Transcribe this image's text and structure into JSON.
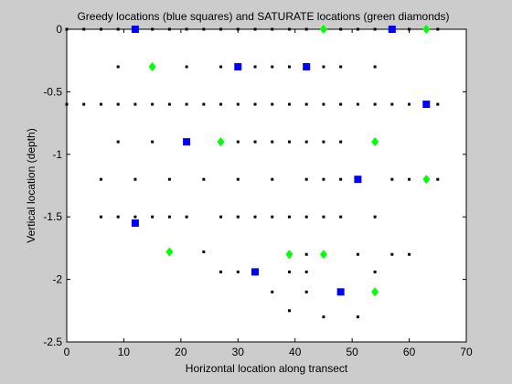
{
  "chart_data": {
    "type": "scatter",
    "title": "Greedy locations (blue squares) and SATURATE locations (green diamonds)",
    "xlabel": "Horizontal location along transect",
    "ylabel": "Vertical location (depth)",
    "xlim": [
      0,
      70
    ],
    "ylim": [
      -2.5,
      0
    ],
    "xticks": [
      0,
      10,
      20,
      30,
      40,
      50,
      60,
      70
    ],
    "yticks": [
      0,
      -0.5,
      -1,
      -1.5,
      -2,
      -2.5
    ],
    "xtick_labels": [
      "0",
      "10",
      "20",
      "30",
      "40",
      "50",
      "60",
      "70"
    ],
    "ytick_labels": [
      "0",
      "-0.5",
      "-1",
      "-1.5",
      "-2",
      "-2.5"
    ],
    "grid": false,
    "series": [
      {
        "marker": "dot",
        "color": "#000000",
        "x": [
          0,
          3,
          6,
          9,
          12,
          15,
          18,
          21,
          24,
          27,
          30,
          33,
          36,
          39,
          42,
          45,
          48,
          51,
          54,
          57,
          60,
          63,
          65,
          9,
          15,
          21,
          27,
          30,
          33,
          36,
          39,
          42,
          45,
          48,
          54,
          0,
          3,
          6,
          9,
          12,
          15,
          18,
          21,
          24,
          27,
          30,
          33,
          36,
          39,
          42,
          45,
          48,
          51,
          54,
          57,
          60,
          63,
          65,
          9,
          15,
          21,
          27,
          30,
          33,
          36,
          39,
          42,
          45,
          48,
          54,
          6,
          12,
          18,
          24,
          30,
          36,
          42,
          45,
          48,
          51,
          57,
          60,
          65,
          6,
          9,
          12,
          15,
          18,
          21,
          27,
          30,
          33,
          36,
          39,
          42,
          45,
          48,
          54,
          18,
          24,
          39,
          42,
          45,
          51,
          57,
          60,
          27,
          30,
          33,
          39,
          42,
          54,
          36,
          42,
          48,
          39,
          45,
          51
        ],
        "y": [
          0,
          0,
          0,
          0,
          0,
          0,
          0,
          0,
          0,
          0,
          0,
          0,
          0,
          0,
          0,
          0,
          0,
          0,
          0,
          0,
          0,
          0,
          0,
          -0.3,
          -0.3,
          -0.3,
          -0.3,
          -0.3,
          -0.3,
          -0.3,
          -0.3,
          -0.3,
          -0.3,
          -0.3,
          -0.3,
          -0.6,
          -0.6,
          -0.6,
          -0.6,
          -0.6,
          -0.6,
          -0.6,
          -0.6,
          -0.6,
          -0.6,
          -0.6,
          -0.6,
          -0.6,
          -0.6,
          -0.6,
          -0.6,
          -0.6,
          -0.6,
          -0.6,
          -0.6,
          -0.6,
          -0.6,
          -0.6,
          -0.9,
          -0.9,
          -0.9,
          -0.9,
          -0.9,
          -0.9,
          -0.9,
          -0.9,
          -0.9,
          -0.9,
          -0.9,
          -0.9,
          -1.2,
          -1.2,
          -1.2,
          -1.2,
          -1.2,
          -1.2,
          -1.2,
          -1.2,
          -1.2,
          -1.2,
          -1.2,
          -1.2,
          -1.2,
          -1.5,
          -1.5,
          -1.5,
          -1.5,
          -1.5,
          -1.5,
          -1.5,
          -1.5,
          -1.5,
          -1.5,
          -1.5,
          -1.5,
          -1.5,
          -1.5,
          -1.5,
          -1.78,
          -1.78,
          -1.8,
          -1.8,
          -1.8,
          -1.8,
          -1.8,
          -1.8,
          -1.94,
          -1.94,
          -1.94,
          -1.94,
          -1.94,
          -1.94,
          -2.1,
          -2.1,
          -2.1,
          -2.25,
          -2.3,
          -2.3
        ]
      },
      {
        "marker": "square",
        "color": "#0000ff",
        "x": [
          12,
          57,
          30,
          42,
          63,
          21,
          51,
          12,
          33,
          48
        ],
        "y": [
          0,
          0,
          -0.3,
          -0.3,
          -0.6,
          -0.9,
          -1.2,
          -1.55,
          -1.94,
          -2.1
        ]
      },
      {
        "marker": "diamond",
        "color": "#00ff00",
        "x": [
          45,
          63,
          15,
          27,
          54,
          63,
          18,
          39,
          45,
          54
        ],
        "y": [
          0,
          0,
          -0.3,
          -0.9,
          -0.9,
          -1.2,
          -1.78,
          -1.8,
          -1.8,
          -2.1
        ]
      }
    ]
  }
}
